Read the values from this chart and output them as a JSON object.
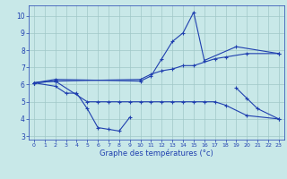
{
  "color": "#1f3faf",
  "bg_color": "#c8e8e8",
  "grid_color": "#a0c8c8",
  "xlim": [
    -0.5,
    23.5
  ],
  "ylim": [
    2.8,
    10.6
  ],
  "yticks": [
    3,
    4,
    5,
    6,
    7,
    8,
    9,
    10
  ],
  "xticks": [
    0,
    1,
    2,
    3,
    4,
    5,
    6,
    7,
    8,
    9,
    10,
    11,
    12,
    13,
    14,
    15,
    16,
    17,
    18,
    19,
    20,
    21,
    22,
    23
  ],
  "xlabel": "Graphe des températures (°c)",
  "line1_x": [
    0,
    2,
    10,
    11,
    12,
    13,
    14,
    15,
    16,
    19,
    23
  ],
  "line1_y": [
    6.1,
    6.3,
    6.2,
    6.5,
    7.5,
    8.5,
    9.0,
    10.2,
    7.4,
    8.2,
    7.8
  ],
  "line2_x": [
    0,
    2,
    10,
    11,
    12,
    13,
    14,
    15,
    17,
    18,
    20,
    23
  ],
  "line2_y": [
    6.1,
    6.2,
    6.3,
    6.6,
    6.8,
    6.9,
    7.1,
    7.1,
    7.5,
    7.6,
    7.8,
    7.8
  ],
  "line3_x": [
    0,
    2,
    3,
    4,
    5,
    6,
    7,
    8,
    9
  ],
  "line3_y": [
    6.1,
    5.9,
    5.5,
    5.5,
    4.6,
    3.5,
    3.4,
    3.3,
    4.1
  ],
  "line4_x": [
    0,
    2,
    5,
    6,
    7,
    8,
    9,
    10,
    11,
    12,
    13,
    14,
    15,
    16,
    17,
    18,
    20,
    23
  ],
  "line4_y": [
    6.1,
    6.2,
    5.0,
    5.0,
    5.0,
    5.0,
    5.0,
    5.0,
    5.0,
    5.0,
    5.0,
    5.0,
    5.0,
    5.0,
    5.0,
    4.8,
    4.2,
    4.0
  ],
  "line5_x": [
    19,
    20,
    21,
    23
  ],
  "line5_y": [
    5.8,
    5.2,
    4.6,
    4.0
  ]
}
